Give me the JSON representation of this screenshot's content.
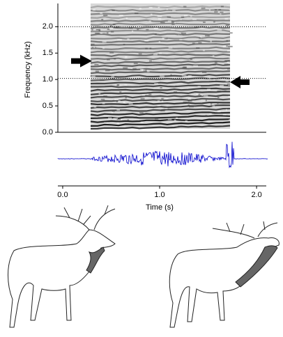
{
  "chart_data": {
    "type": "spectrogram",
    "ylabel": "Frequency (kHz)",
    "xlabel": "Time (s)",
    "ylim": [
      0,
      2.4
    ],
    "yticks": [
      {
        "value": 0,
        "label": "0.0"
      },
      {
        "value": 0.5,
        "label": "0.5"
      },
      {
        "value": 1,
        "label": "1.0"
      },
      {
        "value": 1.5,
        "label": "1.5"
      },
      {
        "value": 2,
        "label": "2.0"
      }
    ],
    "xlim": [
      -0.05,
      2.1
    ],
    "xticks": [
      {
        "value": 0,
        "label": "0.0"
      },
      {
        "value": 1,
        "label": "1.0"
      },
      {
        "value": 2,
        "label": "2.0"
      }
    ],
    "reference_lines": [
      1.02,
      2.0
    ],
    "arrows": [
      {
        "side": "left",
        "y": 1.35
      },
      {
        "side": "right",
        "y": 0.95
      }
    ],
    "waveform_color": "#0000cc"
  }
}
